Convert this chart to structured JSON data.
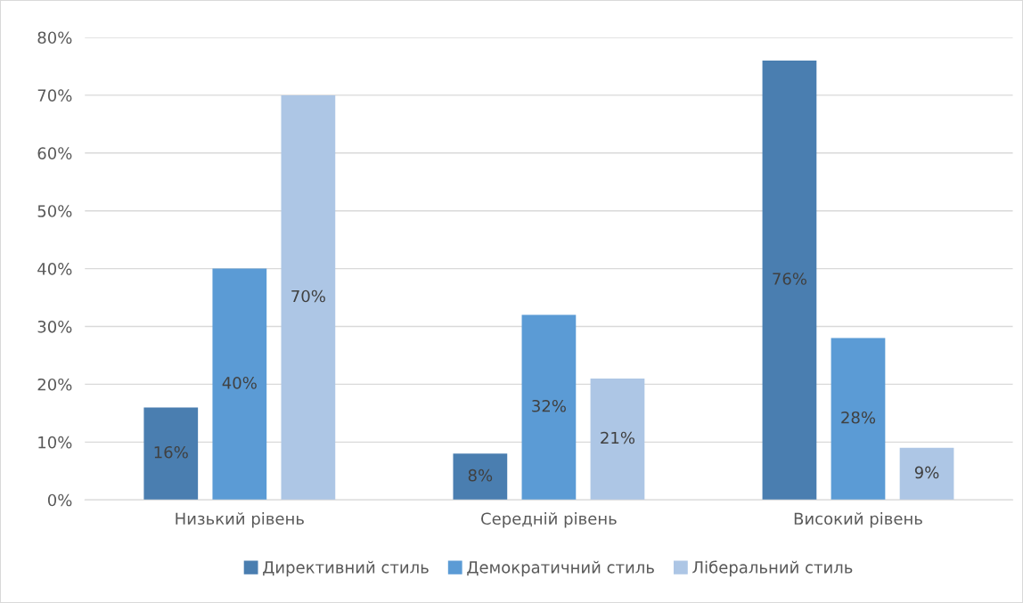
{
  "chart_data": {
    "type": "bar",
    "categories": [
      "Низький рівень",
      "Середній рівень",
      "Високий рівень"
    ],
    "series": [
      {
        "name": "Директивний стиль",
        "color": "#4a7eb0",
        "values": [
          16,
          8,
          76
        ],
        "value_labels": [
          "16%",
          "8%",
          "76%"
        ]
      },
      {
        "name": "Демократичний стиль",
        "color": "#5b9bd5",
        "values": [
          40,
          32,
          28
        ],
        "value_labels": [
          "40%",
          "32%",
          "28%"
        ]
      },
      {
        "name": "Ліберальний стиль",
        "color": "#adc6e5",
        "values": [
          70,
          21,
          9
        ],
        "value_labels": [
          "70%",
          "21%",
          "9%"
        ]
      }
    ],
    "ylim": [
      0,
      80
    ],
    "yticks": [
      {
        "value": 0,
        "label": "0%"
      },
      {
        "value": 10,
        "label": "10%"
      },
      {
        "value": 20,
        "label": "20%"
      },
      {
        "value": 30,
        "label": "30%"
      },
      {
        "value": 40,
        "label": "40%"
      },
      {
        "value": 50,
        "label": "50%"
      },
      {
        "value": 60,
        "label": "60%"
      },
      {
        "value": 70,
        "label": "70%"
      },
      {
        "value": 80,
        "label": "80%"
      }
    ],
    "grid": "y",
    "legend": "bottom"
  }
}
